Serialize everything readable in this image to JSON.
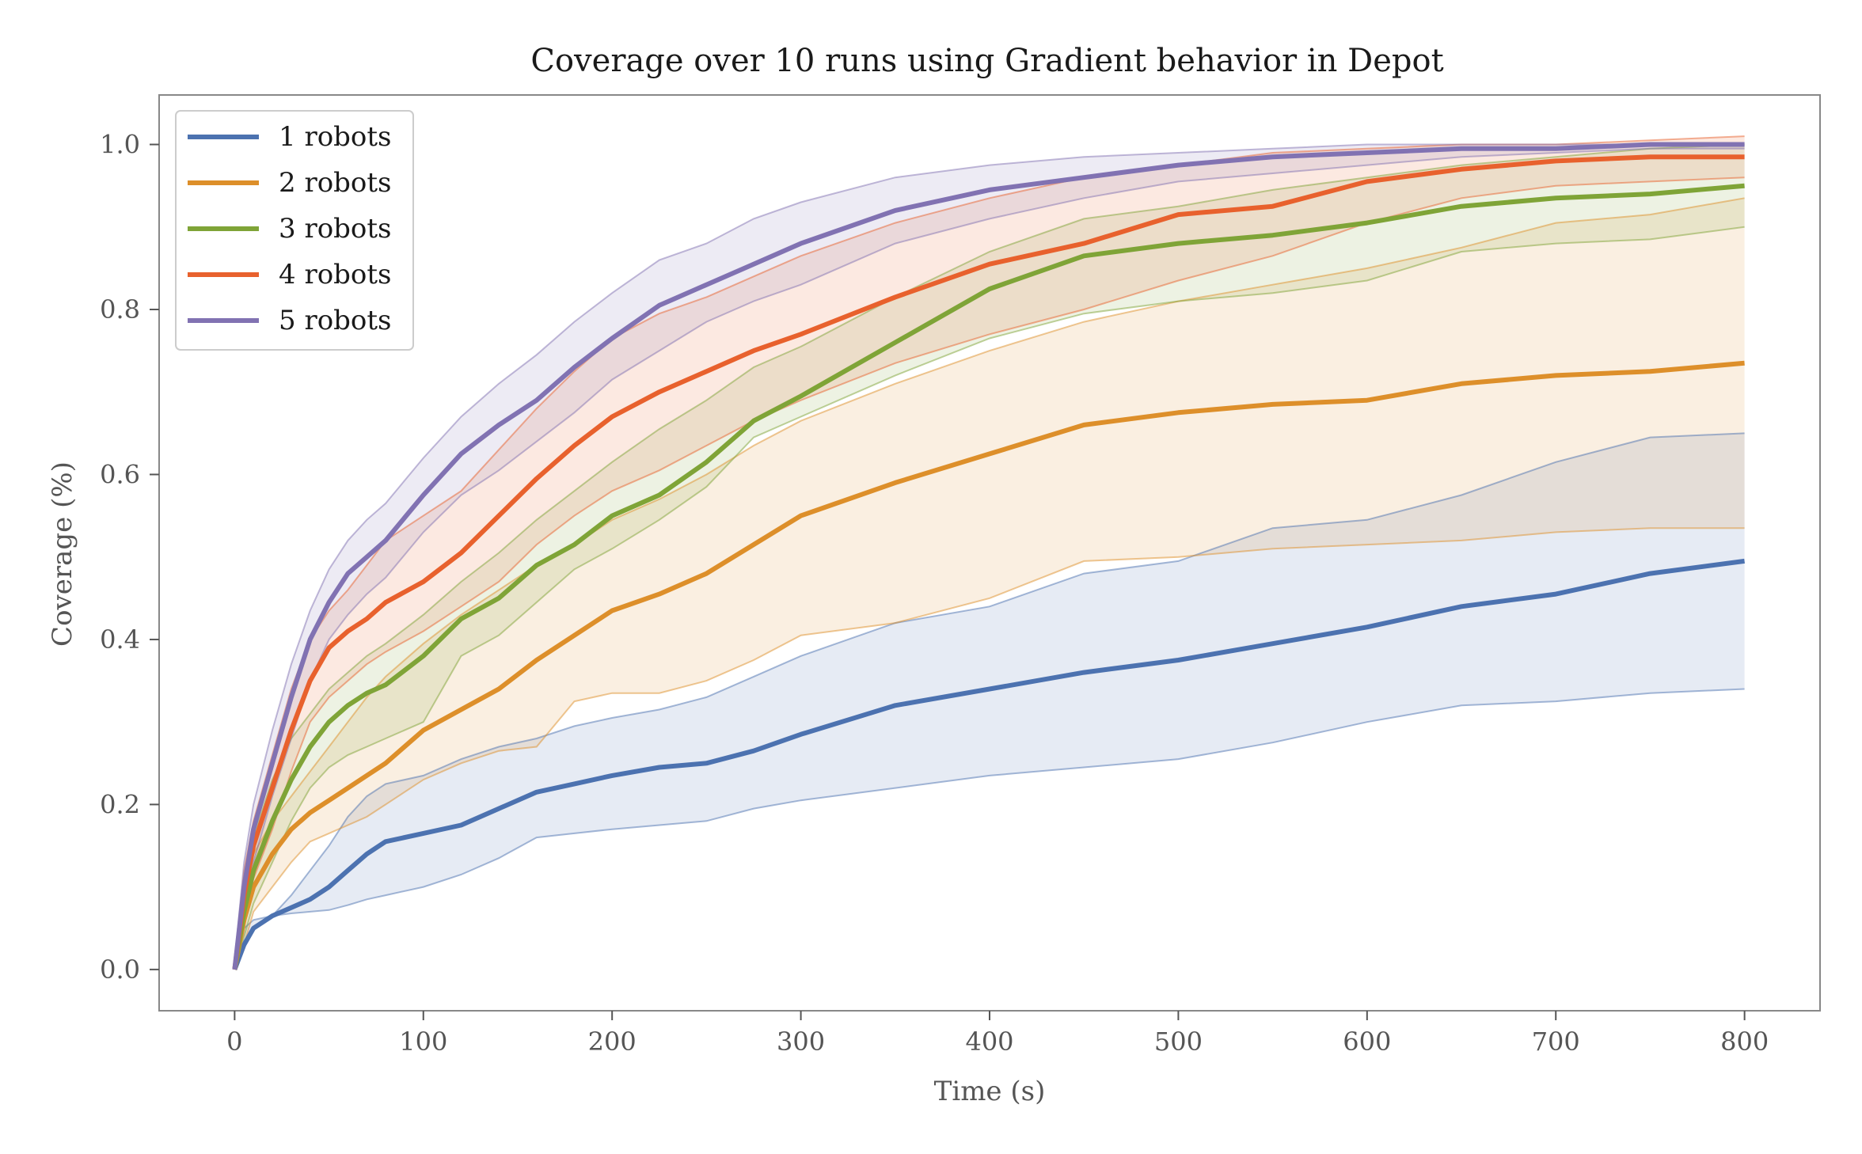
{
  "chart_data": {
    "type": "line",
    "title": "Coverage over 10 runs using Gradient behavior in Depot",
    "xlabel": "Time (s)",
    "ylabel": "Coverage (%)",
    "xlim": [
      -40,
      840
    ],
    "ylim": [
      -0.05,
      1.06
    ],
    "xticks": [
      0,
      100,
      200,
      300,
      400,
      500,
      600,
      700,
      800
    ],
    "xtick_labels": [
      "0",
      "100",
      "200",
      "300",
      "400",
      "500",
      "600",
      "700",
      "800"
    ],
    "yticks": [
      0.0,
      0.2,
      0.4,
      0.6,
      0.8,
      1.0
    ],
    "ytick_labels": [
      "0.0",
      "0.2",
      "0.4",
      "0.6",
      "0.8",
      "1.0"
    ],
    "legend_position": "top-left",
    "x": [
      0,
      5,
      10,
      20,
      30,
      40,
      50,
      60,
      70,
      80,
      100,
      120,
      140,
      160,
      180,
      200,
      225,
      250,
      275,
      300,
      350,
      400,
      450,
      500,
      550,
      600,
      650,
      700,
      750,
      800
    ],
    "series": [
      {
        "name": "1 robots",
        "color": "#4c72b0",
        "mean": [
          0.0,
          0.03,
          0.05,
          0.065,
          0.075,
          0.085,
          0.1,
          0.12,
          0.14,
          0.155,
          0.165,
          0.175,
          0.195,
          0.215,
          0.225,
          0.235,
          0.245,
          0.25,
          0.265,
          0.285,
          0.32,
          0.34,
          0.36,
          0.375,
          0.395,
          0.415,
          0.44,
          0.455,
          0.48,
          0.495
        ],
        "upper": [
          0.01,
          0.05,
          0.06,
          0.065,
          0.09,
          0.12,
          0.15,
          0.185,
          0.21,
          0.225,
          0.235,
          0.255,
          0.27,
          0.28,
          0.295,
          0.305,
          0.315,
          0.33,
          0.355,
          0.38,
          0.42,
          0.44,
          0.48,
          0.495,
          0.535,
          0.545,
          0.575,
          0.615,
          0.645,
          0.65
        ],
        "lower": [
          0.0,
          0.03,
          0.05,
          0.065,
          0.068,
          0.07,
          0.072,
          0.078,
          0.085,
          0.09,
          0.1,
          0.115,
          0.135,
          0.16,
          0.165,
          0.17,
          0.175,
          0.18,
          0.195,
          0.205,
          0.22,
          0.235,
          0.245,
          0.255,
          0.275,
          0.3,
          0.32,
          0.325,
          0.335,
          0.34
        ]
      },
      {
        "name": "2 robots",
        "color": "#dd8f2a",
        "mean": [
          0.0,
          0.06,
          0.1,
          0.14,
          0.17,
          0.19,
          0.205,
          0.22,
          0.235,
          0.25,
          0.29,
          0.315,
          0.34,
          0.375,
          0.405,
          0.435,
          0.455,
          0.48,
          0.515,
          0.55,
          0.59,
          0.625,
          0.66,
          0.675,
          0.685,
          0.69,
          0.71,
          0.72,
          0.725,
          0.735
        ],
        "upper": [
          0.01,
          0.1,
          0.14,
          0.18,
          0.21,
          0.24,
          0.27,
          0.3,
          0.33,
          0.355,
          0.395,
          0.43,
          0.46,
          0.49,
          0.515,
          0.545,
          0.57,
          0.6,
          0.635,
          0.665,
          0.71,
          0.75,
          0.785,
          0.81,
          0.83,
          0.85,
          0.875,
          0.905,
          0.915,
          0.935
        ],
        "lower": [
          0.0,
          0.03,
          0.07,
          0.1,
          0.13,
          0.155,
          0.165,
          0.175,
          0.185,
          0.2,
          0.23,
          0.25,
          0.265,
          0.27,
          0.325,
          0.335,
          0.335,
          0.35,
          0.375,
          0.405,
          0.42,
          0.45,
          0.495,
          0.5,
          0.51,
          0.515,
          0.52,
          0.53,
          0.535,
          0.535
        ]
      },
      {
        "name": "3 robots",
        "color": "#7fa437",
        "mean": [
          0.0,
          0.07,
          0.12,
          0.18,
          0.23,
          0.27,
          0.3,
          0.32,
          0.335,
          0.345,
          0.38,
          0.425,
          0.45,
          0.49,
          0.515,
          0.55,
          0.575,
          0.615,
          0.665,
          0.695,
          0.76,
          0.825,
          0.865,
          0.88,
          0.89,
          0.905,
          0.925,
          0.935,
          0.94,
          0.95
        ],
        "upper": [
          0.01,
          0.11,
          0.16,
          0.23,
          0.28,
          0.31,
          0.34,
          0.36,
          0.38,
          0.395,
          0.43,
          0.47,
          0.505,
          0.545,
          0.58,
          0.615,
          0.655,
          0.69,
          0.73,
          0.755,
          0.815,
          0.87,
          0.91,
          0.925,
          0.945,
          0.96,
          0.975,
          0.985,
          0.995,
          1.0
        ],
        "lower": [
          0.0,
          0.04,
          0.08,
          0.13,
          0.18,
          0.22,
          0.245,
          0.26,
          0.27,
          0.28,
          0.3,
          0.38,
          0.405,
          0.445,
          0.485,
          0.51,
          0.545,
          0.585,
          0.645,
          0.67,
          0.72,
          0.765,
          0.795,
          0.81,
          0.82,
          0.835,
          0.87,
          0.88,
          0.885,
          0.9
        ]
      },
      {
        "name": "4 robots",
        "color": "#e8612d",
        "mean": [
          0.0,
          0.09,
          0.15,
          0.22,
          0.29,
          0.35,
          0.39,
          0.41,
          0.425,
          0.445,
          0.47,
          0.505,
          0.55,
          0.595,
          0.635,
          0.67,
          0.7,
          0.725,
          0.75,
          0.77,
          0.815,
          0.855,
          0.88,
          0.915,
          0.925,
          0.955,
          0.97,
          0.98,
          0.985,
          0.985
        ],
        "upper": [
          0.01,
          0.12,
          0.18,
          0.26,
          0.34,
          0.4,
          0.435,
          0.46,
          0.49,
          0.52,
          0.55,
          0.58,
          0.63,
          0.68,
          0.725,
          0.765,
          0.795,
          0.815,
          0.84,
          0.865,
          0.905,
          0.935,
          0.96,
          0.975,
          0.99,
          0.995,
          1.0,
          1.0,
          1.005,
          1.01
        ],
        "lower": [
          0.0,
          0.06,
          0.11,
          0.17,
          0.24,
          0.3,
          0.33,
          0.35,
          0.37,
          0.385,
          0.41,
          0.44,
          0.47,
          0.515,
          0.55,
          0.58,
          0.605,
          0.635,
          0.665,
          0.69,
          0.735,
          0.77,
          0.8,
          0.835,
          0.865,
          0.905,
          0.935,
          0.95,
          0.955,
          0.96
        ]
      },
      {
        "name": "5 robots",
        "color": "#8172b2",
        "mean": [
          0.0,
          0.1,
          0.17,
          0.25,
          0.33,
          0.4,
          0.445,
          0.48,
          0.5,
          0.52,
          0.575,
          0.625,
          0.66,
          0.69,
          0.73,
          0.765,
          0.805,
          0.83,
          0.855,
          0.88,
          0.92,
          0.945,
          0.96,
          0.975,
          0.985,
          0.99,
          0.995,
          0.995,
          1.0,
          1.0
        ],
        "upper": [
          0.01,
          0.13,
          0.2,
          0.29,
          0.37,
          0.435,
          0.485,
          0.52,
          0.545,
          0.565,
          0.62,
          0.67,
          0.71,
          0.745,
          0.785,
          0.82,
          0.86,
          0.88,
          0.91,
          0.93,
          0.96,
          0.975,
          0.985,
          0.99,
          0.995,
          1.0,
          1.0,
          1.0,
          1.0,
          1.0
        ],
        "lower": [
          0.0,
          0.07,
          0.13,
          0.21,
          0.28,
          0.35,
          0.4,
          0.43,
          0.455,
          0.475,
          0.53,
          0.575,
          0.605,
          0.64,
          0.675,
          0.715,
          0.75,
          0.785,
          0.81,
          0.83,
          0.88,
          0.91,
          0.935,
          0.955,
          0.965,
          0.975,
          0.985,
          0.99,
          0.995,
          0.995
        ]
      }
    ]
  }
}
